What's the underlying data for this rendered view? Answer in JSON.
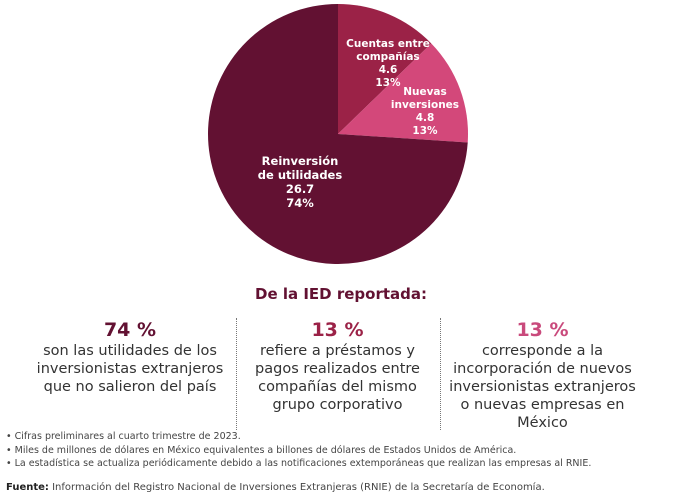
{
  "chart_data": {
    "type": "pie",
    "slices": [
      {
        "label": "Cuentas entre compañías",
        "value": 4.6,
        "percent": "13%",
        "color": "#9b2247"
      },
      {
        "label": "Nuevas inversiones",
        "value": 4.8,
        "percent": "13%",
        "color": "#d3487a"
      },
      {
        "label": "Reinversión de utilidades",
        "value": 26.7,
        "percent": "74%",
        "color": "#621132"
      }
    ],
    "start": "top",
    "direction": "clockwise"
  },
  "labels": {
    "cuentas": [
      "Cuentas entre",
      "compañías",
      "4.6",
      "13%"
    ],
    "nuevas": [
      "Nuevas",
      "inversiones",
      "4.8",
      "13%"
    ],
    "reinversion": [
      "Reinversión",
      "de utilidades",
      "26.7",
      "74%"
    ]
  },
  "subtitle": "De la IED reportada:",
  "columns": [
    {
      "pct": "74 %",
      "color": "#621132",
      "lines": [
        "son las utilidades de los",
        "inversionistas extranjeros",
        "que no salieron del país"
      ]
    },
    {
      "pct": "13 %",
      "color": "#9b2247",
      "lines": [
        "refiere a préstamos y",
        "pagos realizados entre",
        "compañías del mismo",
        "grupo corporativo"
      ]
    },
    {
      "pct": "13 %",
      "color": "#c94a7c",
      "lines": [
        "corresponde a la",
        "incorporación de nuevos",
        "inversionistas extranjeros",
        "o nuevas empresas en",
        "México"
      ]
    }
  ],
  "notes": [
    "Cifras preliminares al cuarto trimestre de 2023.",
    "Miles de millones de dólares en México equivalentes a billones de dólares de Estados Unidos de América.",
    "La estadística se actualiza periódicamente debido a las notificaciones extemporáneas que realizan las empresas al RNIE."
  ],
  "source": {
    "label": "Fuente:",
    "text": " Información del Registro Nacional de Inversiones Extranjeras (RNIE) de la Secretaría de Economía."
  }
}
